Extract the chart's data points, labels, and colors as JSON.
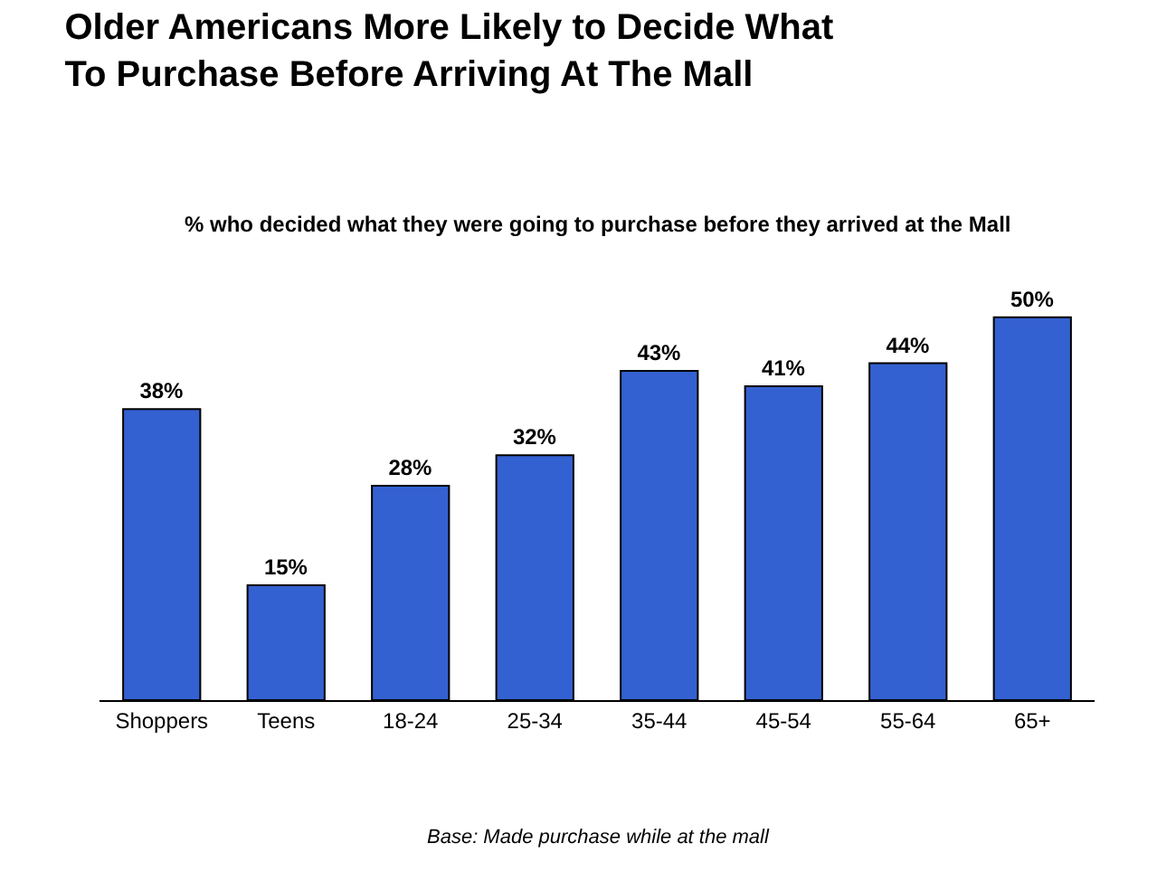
{
  "chart_data": {
    "type": "bar",
    "title": "Older Americans More Likely to Decide What\nTo Purchase Before Arriving At The Mall",
    "subtitle": "% who decided what they were going to purchase before they arrived at the Mall",
    "categories": [
      "Shoppers",
      "Teens",
      "18-24",
      "25-34",
      "35-44",
      "45-54",
      "55-64",
      "65+"
    ],
    "values": [
      38,
      15,
      28,
      32,
      43,
      41,
      44,
      50
    ],
    "value_labels": [
      "38%",
      "15%",
      "28%",
      "32%",
      "43%",
      "41%",
      "44%",
      "50%"
    ],
    "color": "#3461d1",
    "legend": false,
    "annotations": [
      "Base: Made purchase while at the mall"
    ]
  }
}
